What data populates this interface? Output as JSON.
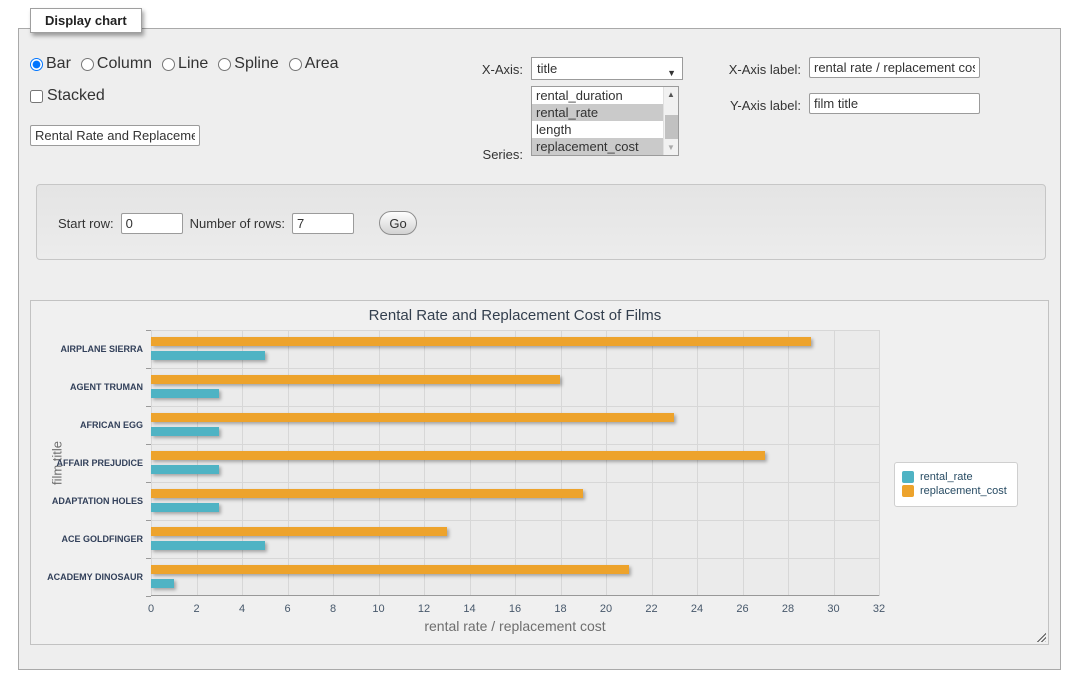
{
  "panel_legend": "Display chart",
  "controls": {
    "chart_types": [
      {
        "label": "Bar",
        "selected": true
      },
      {
        "label": "Column",
        "selected": false
      },
      {
        "label": "Line",
        "selected": false
      },
      {
        "label": "Spline",
        "selected": false
      },
      {
        "label": "Area",
        "selected": false
      }
    ],
    "stacked": {
      "label": "Stacked",
      "checked": false
    },
    "chart_title_input": {
      "value": "Rental Rate and Replacement Cost of Films"
    },
    "x_axis": {
      "label": "X-Axis:",
      "selected": "title"
    },
    "series": {
      "label": "Series:",
      "options": [
        {
          "label": "rental_duration",
          "selected": false
        },
        {
          "label": "rental_rate",
          "selected": true
        },
        {
          "label": "length",
          "selected": false
        },
        {
          "label": "replacement_cost",
          "selected": true
        }
      ]
    },
    "x_axis_label": {
      "label": "X-Axis label:",
      "value": "rental rate / replacement cost"
    },
    "y_axis_label": {
      "label": "Y-Axis label:",
      "value": "film title"
    }
  },
  "row_filter": {
    "start_row_label": "Start row:",
    "start_row_value": "0",
    "num_rows_label": "Number of rows:",
    "num_rows_value": "7",
    "go_label": "Go"
  },
  "chart_data": {
    "type": "bar",
    "title": "Rental Rate and Replacement Cost of Films",
    "categories": [
      "AIRPLANE SIERRA",
      "AGENT TRUMAN",
      "AFRICAN EGG",
      "AFFAIR PREJUDICE",
      "ADAPTATION HOLES",
      "ACE GOLDFINGER",
      "ACADEMY DINOSAUR"
    ],
    "series": [
      {
        "name": "rental_rate",
        "color": "#4fb3c4",
        "values": [
          4.99,
          2.99,
          2.99,
          2.99,
          2.99,
          4.99,
          0.99
        ]
      },
      {
        "name": "replacement_cost",
        "color": "#eda32c",
        "values": [
          28.99,
          17.99,
          22.99,
          26.99,
          18.99,
          12.99,
          20.99
        ]
      }
    ],
    "xlabel": "rental rate / replacement cost",
    "ylabel": "film title",
    "xlim": [
      0,
      32
    ],
    "xtick_step": 2,
    "grid": true,
    "legend_position": "right-middle"
  }
}
